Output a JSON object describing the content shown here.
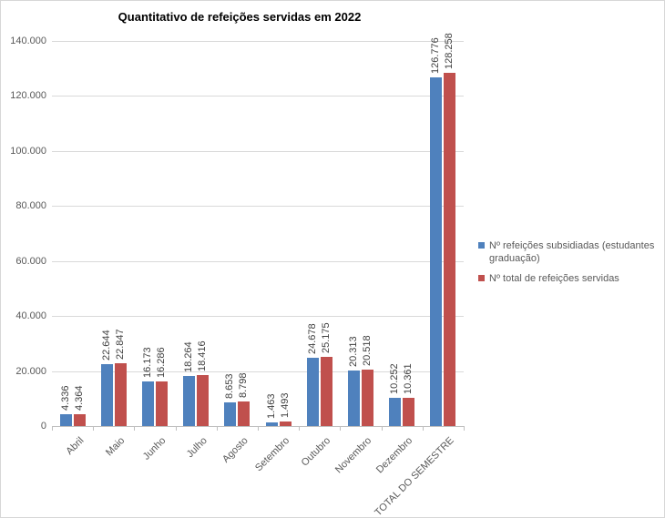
{
  "chart_data": {
    "type": "bar",
    "title": "Quantitativo de refeições servidas em 2022",
    "categories": [
      "Abril",
      "Maio",
      "Junho",
      "Julho",
      "Agosto",
      "Setembro",
      "Outubro",
      "Novembro",
      "Dezembro",
      "TOTAL DO SEMESTRE"
    ],
    "series": [
      {
        "name": "Nº refeições subsidiadas (estudantes graduação)",
        "color": "#4F81BD",
        "values": [
          4336,
          22644,
          16173,
          18264,
          8653,
          1463,
          24678,
          20313,
          10252,
          126776
        ],
        "value_labels": [
          "4.336",
          "22.644",
          "16.173",
          "18.264",
          "8.653",
          "1.463",
          "24.678",
          "20.313",
          "10.252",
          "126.776"
        ]
      },
      {
        "name": "Nº total de refeições servidas",
        "color": "#C0504D",
        "values": [
          4364,
          22847,
          16286,
          18416,
          8798,
          1493,
          25175,
          20518,
          10361,
          128258
        ],
        "value_labels": [
          "4.364",
          "22.847",
          "16.286",
          "18.416",
          "8.798",
          "1.493",
          "25.175",
          "20.518",
          "10.361",
          "128.258"
        ]
      }
    ],
    "y_axis": {
      "min": 0,
      "max": 140000,
      "step": 20000,
      "tick_labels": [
        "0",
        "20.000",
        "40.000",
        "60.000",
        "80.000",
        "100.000",
        "120.000",
        "140.000"
      ]
    },
    "legend_position": "right",
    "grid": true
  }
}
